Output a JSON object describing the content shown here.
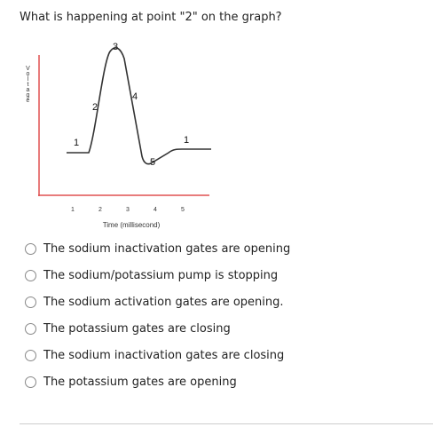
{
  "question": "What is happening at point \"2\" on the graph?",
  "graph": {
    "y_label": "Voltage",
    "x_label": "Time (millisecond)",
    "x_ticks": [
      "1",
      "2",
      "3",
      "4",
      "5"
    ],
    "points": [
      "1",
      "2",
      "3",
      "4",
      "5",
      "1"
    ]
  },
  "options": [
    "The sodium inactivation gates are opening",
    "The sodium/potassium pump is stopping",
    "The sodium activation gates are opening.",
    "The potassium gates are closing",
    "The sodium inactivation gates are closing",
    "The potassium gates are opening"
  ]
}
